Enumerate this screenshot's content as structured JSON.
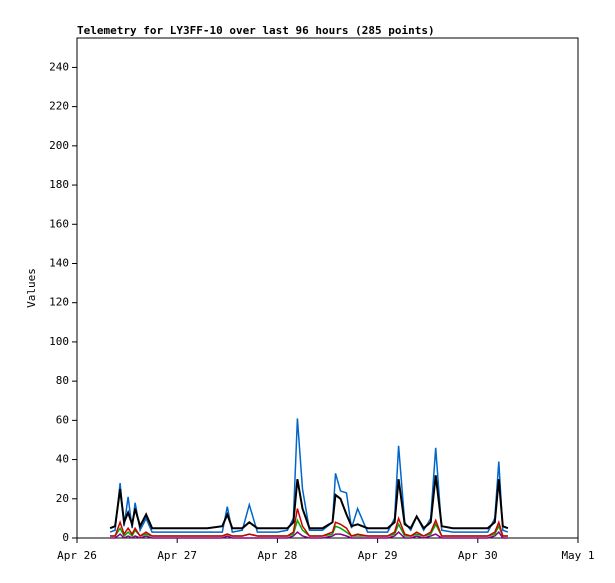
{
  "chart_data": {
    "type": "line",
    "title": "Telemetry for LY3FF-10 over last 96 hours (285 points)",
    "ylabel": "Values",
    "x": [
      0.33,
      0.38,
      0.43,
      0.47,
      0.51,
      0.55,
      0.58,
      0.63,
      0.69,
      0.75,
      0.9,
      1.1,
      1.3,
      1.45,
      1.5,
      1.55,
      1.65,
      1.72,
      1.8,
      2.0,
      2.1,
      2.16,
      2.2,
      2.25,
      2.32,
      2.45,
      2.55,
      2.58,
      2.63,
      2.69,
      2.74,
      2.8,
      2.9,
      3.1,
      3.17,
      3.21,
      3.27,
      3.33,
      3.39,
      3.46,
      3.53,
      3.58,
      3.64,
      3.75,
      3.95,
      4.1,
      4.17,
      4.21,
      4.25,
      4.3
    ],
    "series": [
      {
        "color": "#0066cc",
        "values": [
          3,
          4,
          28,
          6,
          21,
          5,
          18,
          4,
          10,
          3,
          3,
          3,
          3,
          3,
          16,
          3,
          4,
          17,
          3,
          3,
          4,
          10,
          61,
          25,
          4,
          4,
          8,
          33,
          24,
          23,
          5,
          15,
          3,
          3,
          10,
          47,
          8,
          4,
          11,
          4,
          10,
          46,
          4,
          3,
          3,
          3,
          10,
          39,
          4,
          3
        ]
      },
      {
        "color": "#880088",
        "values": [
          0,
          0,
          2,
          0,
          1,
          0,
          1,
          0,
          1,
          0,
          0,
          0,
          0,
          0,
          1,
          0,
          0,
          0,
          0,
          0,
          0,
          1,
          3,
          1,
          0,
          0,
          1,
          2,
          2,
          1,
          0,
          0,
          0,
          0,
          1,
          3,
          0,
          0,
          1,
          0,
          1,
          2,
          0,
          0,
          0,
          0,
          1,
          3,
          0,
          0
        ]
      },
      {
        "color": "#00aa00",
        "values": [
          1,
          1,
          5,
          1,
          3,
          1,
          4,
          1,
          2,
          1,
          1,
          1,
          1,
          1,
          2,
          1,
          1,
          2,
          1,
          1,
          1,
          2,
          9,
          4,
          1,
          1,
          2,
          6,
          5,
          3,
          1,
          1,
          1,
          1,
          2,
          7,
          1,
          1,
          2,
          1,
          2,
          7,
          1,
          1,
          1,
          1,
          2,
          6,
          1,
          1
        ]
      },
      {
        "color": "#cc0000",
        "values": [
          1,
          1,
          8,
          2,
          5,
          2,
          5,
          1,
          3,
          1,
          1,
          1,
          1,
          1,
          2,
          1,
          1,
          2,
          1,
          1,
          1,
          3,
          15,
          6,
          1,
          1,
          3,
          8,
          7,
          5,
          1,
          2,
          1,
          1,
          3,
          10,
          2,
          1,
          3,
          1,
          3,
          9,
          1,
          1,
          1,
          1,
          3,
          8,
          1,
          1
        ]
      },
      {
        "color": "#000000",
        "values": [
          5,
          6,
          25,
          8,
          13,
          7,
          15,
          6,
          12,
          5,
          5,
          5,
          5,
          6,
          12,
          5,
          5,
          8,
          5,
          5,
          5,
          8,
          30,
          15,
          5,
          5,
          8,
          22,
          20,
          12,
          6,
          7,
          5,
          5,
          8,
          30,
          7,
          5,
          11,
          5,
          8,
          32,
          6,
          5,
          5,
          5,
          8,
          30,
          6,
          5
        ]
      }
    ],
    "xlim": [
      0,
      5
    ],
    "xticks": [
      {
        "value": 0,
        "label": "Apr 26"
      },
      {
        "value": 1,
        "label": "Apr 27"
      },
      {
        "value": 2,
        "label": "Apr 28"
      },
      {
        "value": 3,
        "label": "Apr 29"
      },
      {
        "value": 4,
        "label": "Apr 30"
      },
      {
        "value": 5,
        "label": "May 1"
      }
    ],
    "ylim": [
      0,
      255
    ],
    "yticks": [
      0,
      20,
      40,
      60,
      80,
      100,
      120,
      140,
      160,
      180,
      200,
      220,
      240
    ]
  }
}
